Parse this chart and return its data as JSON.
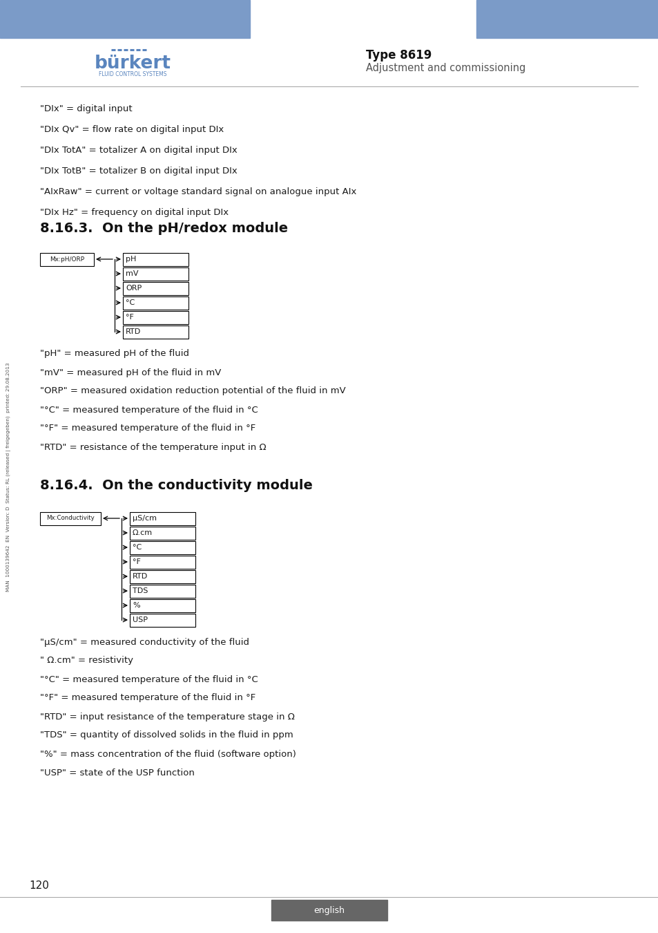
{
  "page_bg": "#ffffff",
  "header_bar_color": "#7b9bc8",
  "type_label": "Type 8619",
  "subtitle_label": "Adjustment and commissioning",
  "footer_bg": "#666666",
  "footer_text": "english",
  "page_number": "120",
  "side_text": "MAN  1000139642  EN  Version: D  Status: RL (released | freigegeben)  printed: 29.08.2013",
  "intro_lines": [
    "\"DIx\" = digital input",
    "\"DIx Qv\" = flow rate on digital input DIx",
    "\"DIx TotA\" = totalizer A on digital input DIx",
    "\"DIx TotB\" = totalizer B on digital input DIx",
    "\"AIxRaw\" = current or voltage standard signal on analogue input AIx",
    "\"DIx Hz\" = frequency on digital input DIx"
  ],
  "section1_title": "8.16.3.  On the pH/redox module",
  "ph_box_label": "Mx:pH/ORP",
  "ph_items": [
    "pH",
    "mV",
    "ORP",
    "°C",
    "°F",
    "RTD"
  ],
  "ph_desc_lines": [
    "\"pH\" = measured pH of the fluid",
    "\"mV\" = measured pH of the fluid in mV",
    "\"ORP\" = measured oxidation reduction potential of the fluid in mV",
    "\"°C\" = measured temperature of the fluid in °C",
    "\"°F\" = measured temperature of the fluid in °F",
    "\"RTD\" = resistance of the temperature input in Ω"
  ],
  "section2_title": "8.16.4.  On the conductivity module",
  "cond_box_label": "Mx:Conductivity",
  "cond_items": [
    "μS/cm",
    "Ω.cm",
    "°C",
    "°F",
    "RTD",
    "TDS",
    "%",
    "USP"
  ],
  "cond_desc_lines": [
    "\"μS/cm\" = measured conductivity of the fluid",
    "\" Ω.cm\" = resistivity",
    "\"°C\" = measured temperature of the fluid in °C",
    "\"°F\" = measured temperature of the fluid in °F",
    "\"RTD\" = input resistance of the temperature stage in Ω",
    "\"TDS\" = quantity of dissolved solids in the fluid in ppm",
    "\"%\" = mass concentration of the fluid (software option)",
    "\"USP\" = state of the USP function"
  ],
  "box_fill": "#ffffff",
  "box_edge": "#000000",
  "text_color": "#1a1a1a",
  "section_title_color": "#111111",
  "type_color": "#111111",
  "subtitle_color": "#555555"
}
